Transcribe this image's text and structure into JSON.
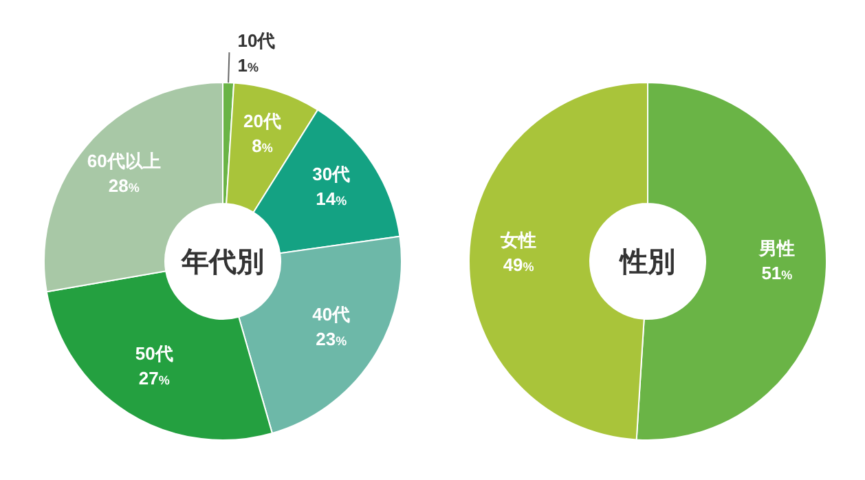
{
  "chart_data": [
    {
      "type": "donut",
      "title": "年代別",
      "categories": [
        "10代",
        "20代",
        "30代",
        "40代",
        "50代",
        "60代以上"
      ],
      "values": [
        1,
        8,
        14,
        23,
        27,
        28
      ],
      "value_labels": [
        "1%",
        "8%",
        "14%",
        "23%",
        "27%",
        "28%"
      ],
      "colors": [
        "#6ab446",
        "#a9c43a",
        "#14a283",
        "#6db8a8",
        "#24a040",
        "#a8c8a6"
      ]
    },
    {
      "type": "donut",
      "title": "性別",
      "categories": [
        "男性",
        "女性"
      ],
      "values": [
        51,
        49
      ],
      "value_labels": [
        "51%",
        "49%"
      ],
      "colors": [
        "#6ab446",
        "#a9c43a"
      ]
    }
  ]
}
